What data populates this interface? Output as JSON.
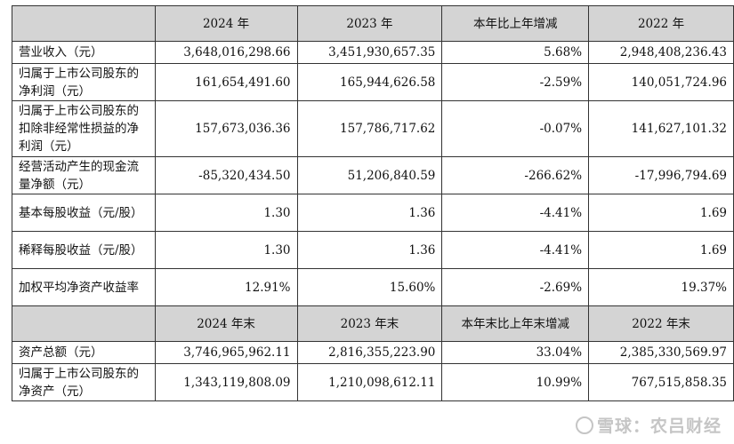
{
  "headers_top": [
    "",
    "2024 年",
    "2023 年",
    "本年比上年增减",
    "2022 年"
  ],
  "rows_top": [
    {
      "label": "营业收入（元）",
      "v2024": "3,648,016,298.66",
      "v2023": "3,451,930,657.35",
      "change": "5.68%",
      "v2022": "2,948,408,236.43"
    },
    {
      "label": "归属于上市公司股东的净利润（元）",
      "v2024": "161,654,491.60",
      "v2023": "165,944,626.58",
      "change": "-2.59%",
      "v2022": "140,051,724.96"
    },
    {
      "label": "归属于上市公司股东的扣除非经常性损益的净利润（元）",
      "v2024": "157,673,036.36",
      "v2023": "157,786,717.62",
      "change": "-0.07%",
      "v2022": "141,627,101.32"
    },
    {
      "label": "经营活动产生的现金流量净额（元）",
      "v2024": "-85,320,434.50",
      "v2023": "51,206,840.59",
      "change": "-266.62%",
      "v2022": "-17,996,794.69"
    },
    {
      "label": "基本每股收益（元/股）",
      "v2024": "1.30",
      "v2023": "1.36",
      "change": "-4.41%",
      "v2022": "1.69"
    },
    {
      "label": "稀释每股收益（元/股）",
      "v2024": "1.30",
      "v2023": "1.36",
      "change": "-4.41%",
      "v2022": "1.69"
    },
    {
      "label": "加权平均净资产收益率",
      "v2024": "12.91%",
      "v2023": "15.60%",
      "change": "-2.69%",
      "v2022": "19.37%"
    }
  ],
  "headers_bottom": [
    "",
    "2024 年末",
    "2023 年末",
    "本年末比上年末增减",
    "2022 年末"
  ],
  "rows_bottom": [
    {
      "label": "资产总额（元）",
      "v2024": "3,746,965,962.11",
      "v2023": "2,816,355,223.90",
      "change": "33.04%",
      "v2022": "2,385,330,569.97"
    },
    {
      "label": "归属于上市公司股东的净资产（元）",
      "v2024": "1,343,119,808.09",
      "v2023": "1,210,098,612.11",
      "change": "10.99%",
      "v2022": "767,515,858.35"
    }
  ],
  "watermark": {
    "text": "雪球：农吕财经"
  }
}
